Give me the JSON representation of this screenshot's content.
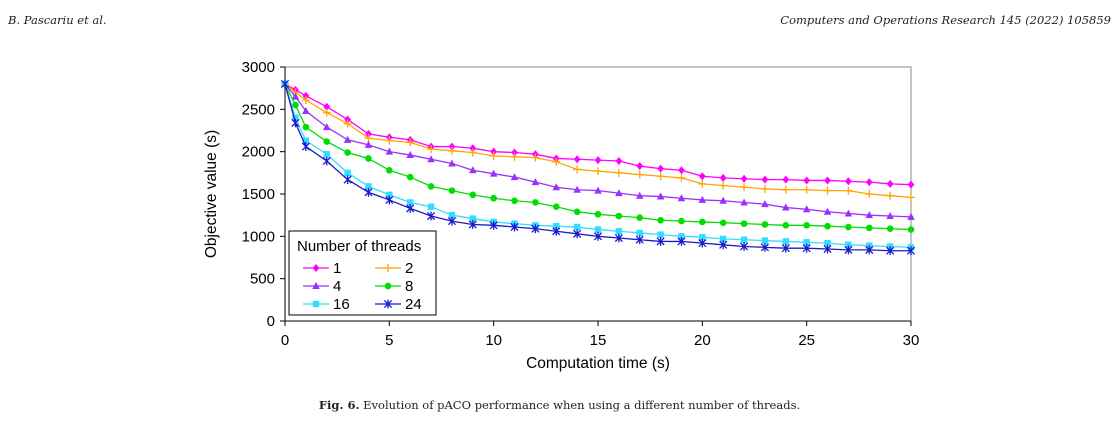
{
  "header": {
    "left": "B. Pascariu et al.",
    "right": "Computers and Operations Research 145 (2022) 105859"
  },
  "caption": {
    "label": "Fig. 6.",
    "text": "Evolution of pACO performance when using a different number of threads."
  },
  "chart_data": {
    "type": "line",
    "title": "",
    "xlabel": "Computation time (s)",
    "ylabel": "Objective value (s)",
    "xlim": [
      0,
      30
    ],
    "ylim": [
      0,
      3000
    ],
    "xticks": [
      0,
      5,
      10,
      15,
      20,
      25,
      30
    ],
    "yticks": [
      0,
      500,
      1000,
      1500,
      2000,
      2500,
      3000
    ],
    "grid": false,
    "legend": {
      "title": "Number of threads",
      "placement": "bottom-left"
    },
    "x": [
      0,
      0.5,
      1,
      2,
      3,
      4,
      5,
      6,
      7,
      8,
      9,
      10,
      11,
      12,
      13,
      14,
      15,
      16,
      17,
      18,
      19,
      20,
      21,
      22,
      23,
      24,
      25,
      26,
      27,
      28,
      29,
      30
    ],
    "series": [
      {
        "name": "1",
        "color": "#ff00ff",
        "marker": "diamond",
        "values": [
          2800,
          2730,
          2660,
          2530,
          2380,
          2210,
          2170,
          2140,
          2060,
          2060,
          2040,
          2000,
          1990,
          1970,
          1920,
          1910,
          1900,
          1890,
          1830,
          1800,
          1780,
          1710,
          1690,
          1680,
          1670,
          1670,
          1660,
          1660,
          1650,
          1640,
          1620,
          1610
        ]
      },
      {
        "name": "2",
        "color": "#ffa500",
        "marker": "plus",
        "values": [
          2800,
          2700,
          2610,
          2460,
          2330,
          2160,
          2130,
          2110,
          2030,
          2010,
          1990,
          1950,
          1940,
          1930,
          1880,
          1790,
          1770,
          1750,
          1730,
          1710,
          1690,
          1620,
          1600,
          1580,
          1560,
          1550,
          1550,
          1540,
          1540,
          1500,
          1480,
          1460
        ]
      },
      {
        "name": "4",
        "color": "#9b30ff",
        "marker": "triangle",
        "values": [
          2800,
          2650,
          2480,
          2290,
          2140,
          2080,
          2000,
          1960,
          1910,
          1860,
          1780,
          1740,
          1700,
          1640,
          1580,
          1550,
          1540,
          1510,
          1480,
          1470,
          1450,
          1430,
          1420,
          1400,
          1380,
          1340,
          1320,
          1290,
          1270,
          1250,
          1240,
          1230
        ]
      },
      {
        "name": "8",
        "color": "#00dd00",
        "marker": "circle",
        "values": [
          2800,
          2550,
          2290,
          2120,
          1990,
          1920,
          1780,
          1700,
          1590,
          1540,
          1490,
          1450,
          1420,
          1400,
          1350,
          1290,
          1260,
          1240,
          1220,
          1190,
          1180,
          1170,
          1160,
          1150,
          1140,
          1130,
          1130,
          1120,
          1110,
          1100,
          1090,
          1080
        ]
      },
      {
        "name": "16",
        "color": "#33ddff",
        "marker": "square",
        "values": [
          2800,
          2400,
          2130,
          1970,
          1750,
          1590,
          1490,
          1400,
          1350,
          1250,
          1210,
          1170,
          1150,
          1130,
          1120,
          1110,
          1080,
          1060,
          1040,
          1020,
          1000,
          990,
          970,
          960,
          950,
          940,
          930,
          920,
          900,
          890,
          880,
          870
        ]
      },
      {
        "name": "24",
        "color": "#1a1acc",
        "marker": "star",
        "values": [
          2800,
          2340,
          2060,
          1890,
          1670,
          1520,
          1430,
          1330,
          1240,
          1180,
          1140,
          1130,
          1110,
          1090,
          1060,
          1030,
          1000,
          980,
          960,
          940,
          940,
          920,
          900,
          880,
          870,
          860,
          860,
          850,
          840,
          840,
          830,
          830
        ]
      }
    ]
  }
}
